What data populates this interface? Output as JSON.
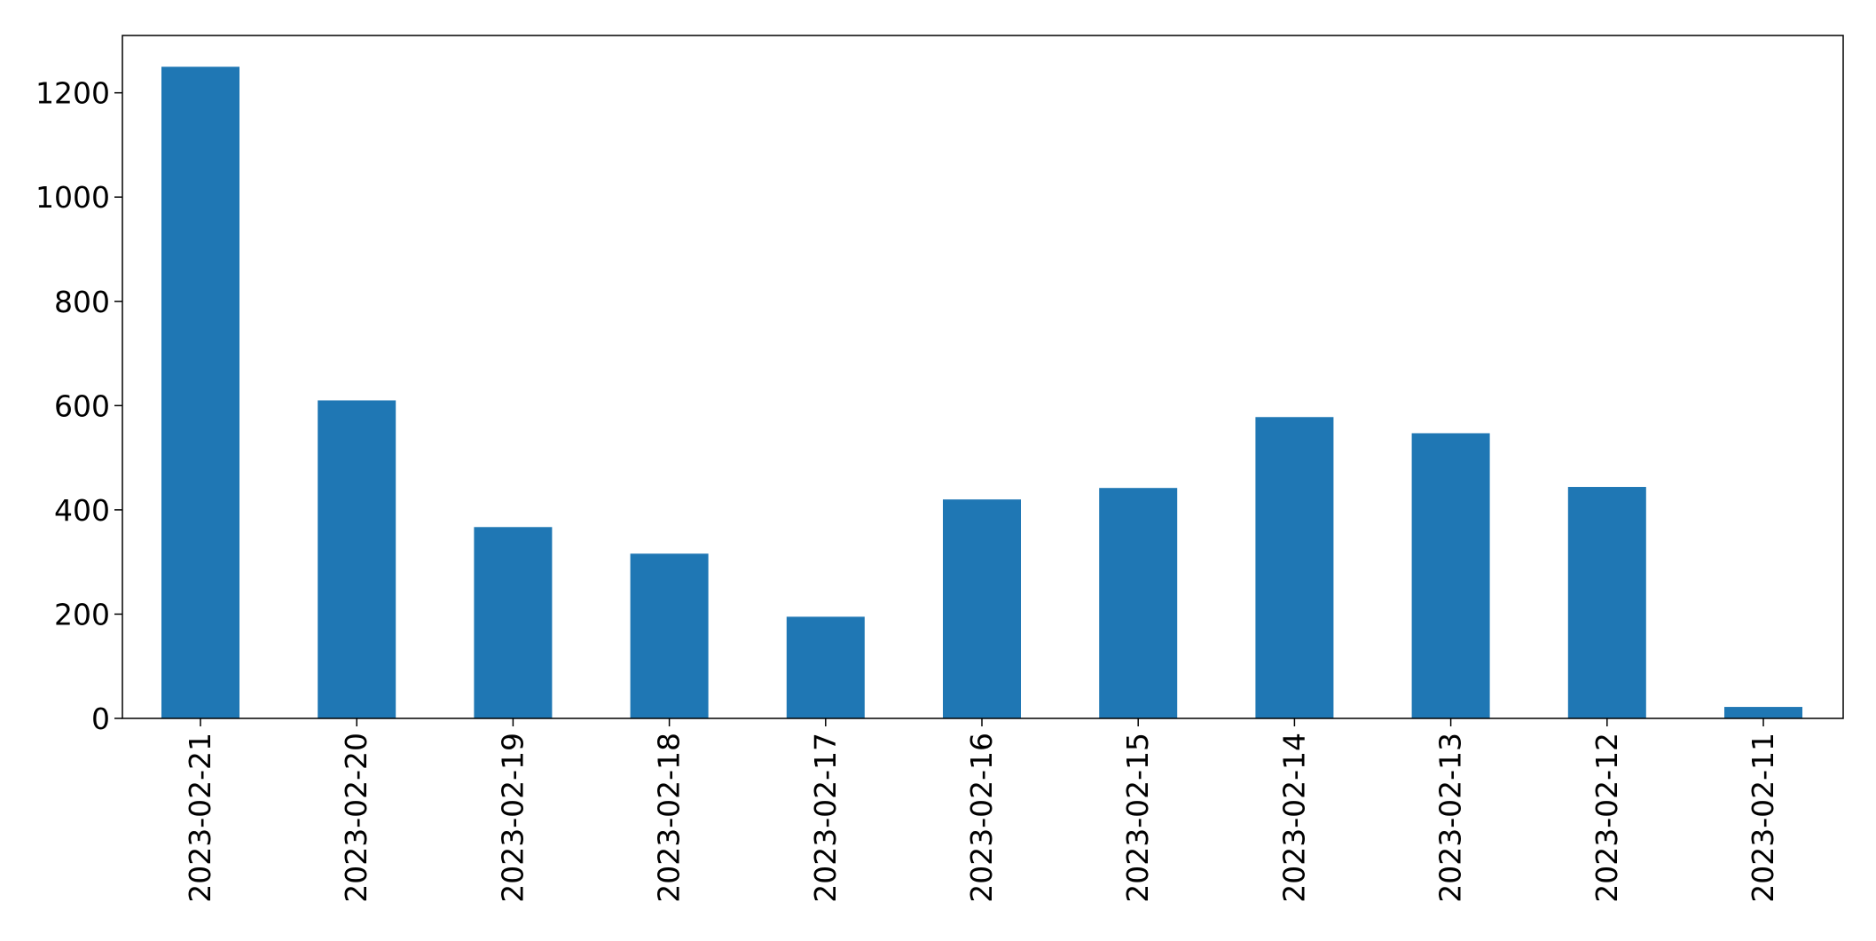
{
  "chart_data": {
    "type": "bar",
    "title": "",
    "xlabel": "",
    "ylabel": "",
    "categories": [
      "2023-02-21",
      "2023-02-20",
      "2023-02-19",
      "2023-02-18",
      "2023-02-17",
      "2023-02-16",
      "2023-02-15",
      "2023-02-14",
      "2023-02-13",
      "2023-02-12",
      "2023-02-11"
    ],
    "values": [
      1250,
      610,
      367,
      316,
      195,
      420,
      442,
      578,
      547,
      444,
      22
    ],
    "ylim": [
      0,
      1310
    ],
    "yticks": [
      0,
      200,
      400,
      600,
      800,
      1000,
      1200
    ],
    "ytick_labels": [
      "0",
      "200",
      "400",
      "600",
      "800",
      "1000",
      "1200"
    ],
    "grid": false,
    "legend": "none",
    "bar_color": "#1f77b4",
    "axis_color": "#000000"
  }
}
